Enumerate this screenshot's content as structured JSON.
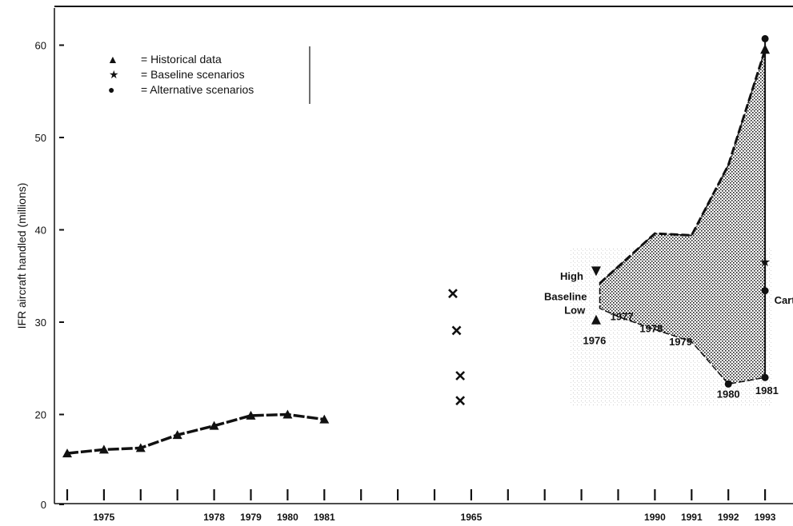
{
  "chart_data": {
    "type": "line",
    "title": "",
    "xlabel": "",
    "ylabel": "IFR aircraft handled (millions)",
    "ylim": [
      0,
      65
    ],
    "y_ticks": [
      0,
      20,
      30,
      40,
      50,
      60
    ],
    "x_tick_labels": [
      {
        "label": "1975",
        "slot": 1
      },
      {
        "label": "1978",
        "slot": 4
      },
      {
        "label": "1979",
        "slot": 5
      },
      {
        "label": "1980",
        "slot": 6
      },
      {
        "label": "1981",
        "slot": 7
      },
      {
        "label": "1965",
        "slot": 11
      },
      {
        "label": "1990",
        "slot": 16
      },
      {
        "label": "1991",
        "slot": 17
      },
      {
        "label": "1992",
        "slot": 18
      },
      {
        "label": "1993",
        "slot": 19
      }
    ],
    "x_tick_count": 20,
    "legend": {
      "placement": "top-left",
      "entries": [
        {
          "symbol": "▲",
          "text": "= Historical data"
        },
        {
          "symbol": "★",
          "text": "= Baseline scenarios"
        },
        {
          "symbol": "●",
          "text": "= Alternative scenarios"
        }
      ]
    },
    "series": [
      {
        "name": "Historical data",
        "marker": "triangle",
        "points": [
          {
            "slot": 0,
            "y": 12.8
          },
          {
            "slot": 1,
            "y": 13.5
          },
          {
            "slot": 2,
            "y": 13.8
          },
          {
            "slot": 3,
            "y": 16.2
          },
          {
            "slot": 4,
            "y": 17.9
          },
          {
            "slot": 5,
            "y": 19.8
          },
          {
            "slot": 6,
            "y": 20.0
          },
          {
            "slot": 7,
            "y": 19.1
          }
        ]
      }
    ],
    "x_markers": [
      {
        "slot": 10.5,
        "y": 33.1
      },
      {
        "slot": 10.6,
        "y": 29.1
      },
      {
        "slot": 10.7,
        "y": 24.2
      },
      {
        "slot": 10.7,
        "y": 21.5
      }
    ],
    "fan": {
      "upper": [
        {
          "slot": 14.5,
          "y": 34.2
        },
        {
          "slot": 16,
          "y": 39.6
        },
        {
          "slot": 17,
          "y": 39.4
        },
        {
          "slot": 18,
          "y": 47.0
        },
        {
          "slot": 19,
          "y": 59.5
        }
      ],
      "lower": [
        {
          "slot": 14.5,
          "y": 31.5
        },
        {
          "slot": 15,
          "y": 30.6
        },
        {
          "slot": 16,
          "y": 29.2
        },
        {
          "slot": 17,
          "y": 27.9
        },
        {
          "slot": 18,
          "y": 23.3
        },
        {
          "slot": 19,
          "y": 24.0
        }
      ],
      "markers": [
        {
          "slot": 19,
          "y": 60.7,
          "shape": "circle"
        },
        {
          "slot": 19,
          "y": 59.5,
          "shape": "triangle"
        },
        {
          "slot": 19,
          "y": 36.5,
          "shape": "star"
        },
        {
          "slot": 19,
          "y": 33.4,
          "shape": "circle"
        },
        {
          "slot": 19,
          "y": 24.0,
          "shape": "circle"
        },
        {
          "slot": 18,
          "y": 23.3,
          "shape": "circle"
        },
        {
          "slot": 14.4,
          "y": 35.6,
          "shape": "down-triangle"
        },
        {
          "slot": 14.4,
          "y": 30.2,
          "shape": "triangle"
        }
      ]
    },
    "annotations": {
      "high": "High",
      "baseline": "Baseline",
      "low": "Low",
      "year_1976": "1976",
      "year_1977": "1977",
      "year_1978": "1978",
      "year_1979": "1979",
      "year_1980": "1980",
      "year_1981": "1981",
      "carter": "Carton"
    }
  }
}
